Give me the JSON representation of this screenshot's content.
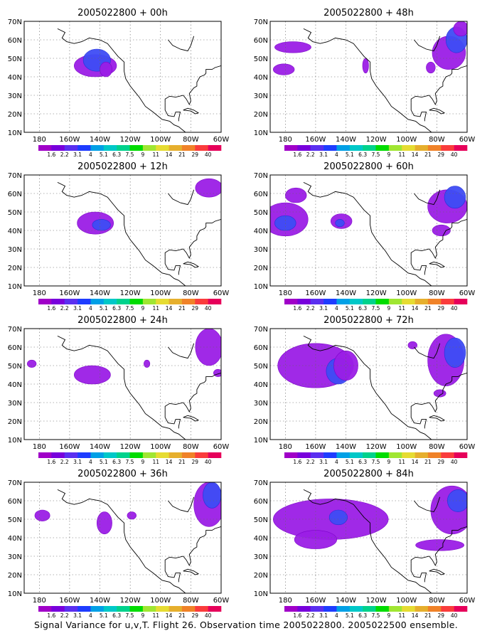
{
  "figure": {
    "caption": "Signal Variance for u,v,T. Flight 26. Observation time 2005022800. 2005022500 ensemble."
  },
  "colorbar": {
    "labels": [
      "1.6",
      "2.2",
      "3.1",
      "4",
      "5.1",
      "6.3",
      "7.5",
      "9",
      "11",
      "14",
      "21",
      "29",
      "40"
    ],
    "colors": [
      "#a000c8",
      "#7800dc",
      "#5a2ff0",
      "#1e3cff",
      "#00a0e6",
      "#00c8c8",
      "#00d28c",
      "#00dc00",
      "#a0e632",
      "#e6dc32",
      "#e6af2d",
      "#f08228",
      "#fa3c3c",
      "#e6005a"
    ]
  },
  "axes": {
    "y_ticks": [
      "10N",
      "20N",
      "30N",
      "40N",
      "50N",
      "60N",
      "70N"
    ],
    "x_ticks": [
      "180",
      "160W",
      "140W",
      "120W",
      "100W",
      "80W",
      "60W"
    ]
  },
  "chart_data": [
    {
      "type": "heatmap",
      "title": "2005022800 + 00h",
      "xlim": [
        -190,
        -60
      ],
      "ylim": [
        10,
        70
      ],
      "grid": true,
      "patches": [
        {
          "level": 1,
          "center": [
            -143,
            46
          ],
          "extent": [
            14,
            6
          ]
        },
        {
          "level": 2,
          "center": [
            -142,
            49
          ],
          "extent": [
            9,
            6
          ]
        },
        {
          "level": 1,
          "center": [
            -136,
            44
          ],
          "extent": [
            4,
            4
          ]
        }
      ]
    },
    {
      "type": "heatmap",
      "title": "2005022800 + 48h",
      "xlim": [
        -190,
        -60
      ],
      "ylim": [
        10,
        70
      ],
      "grid": true,
      "patches": [
        {
          "level": 1,
          "center": [
            -175,
            56
          ],
          "extent": [
            12,
            3
          ]
        },
        {
          "level": 1,
          "center": [
            -181,
            44
          ],
          "extent": [
            7,
            3
          ]
        },
        {
          "level": 1,
          "center": [
            -127,
            46
          ],
          "extent": [
            2,
            4
          ]
        },
        {
          "level": 1,
          "center": [
            -84,
            45
          ],
          "extent": [
            3,
            3
          ]
        },
        {
          "level": 1,
          "center": [
            -72,
            53
          ],
          "extent": [
            11,
            9
          ]
        },
        {
          "level": 2,
          "center": [
            -67,
            60
          ],
          "extent": [
            7,
            7
          ]
        },
        {
          "level": 1,
          "center": [
            -64,
            66
          ],
          "extent": [
            5,
            4
          ]
        }
      ]
    },
    {
      "type": "heatmap",
      "title": "2005022800 + 12h",
      "xlim": [
        -190,
        -60
      ],
      "ylim": [
        10,
        70
      ],
      "grid": true,
      "patches": [
        {
          "level": 1,
          "center": [
            -143,
            44
          ],
          "extent": [
            12,
            6
          ]
        },
        {
          "level": 2,
          "center": [
            -139,
            43
          ],
          "extent": [
            6,
            3
          ]
        },
        {
          "level": 1,
          "center": [
            -68,
            63
          ],
          "extent": [
            9,
            5
          ]
        }
      ]
    },
    {
      "type": "heatmap",
      "title": "2005022800 + 60h",
      "xlim": [
        -190,
        -60
      ],
      "ylim": [
        10,
        70
      ],
      "grid": true,
      "patches": [
        {
          "level": 1,
          "center": [
            -180,
            46
          ],
          "extent": [
            15,
            9
          ]
        },
        {
          "level": 1,
          "center": [
            -173,
            59
          ],
          "extent": [
            7,
            4
          ]
        },
        {
          "level": 2,
          "center": [
            -180,
            44
          ],
          "extent": [
            7,
            4
          ]
        },
        {
          "level": 1,
          "center": [
            -143,
            45
          ],
          "extent": [
            7,
            4
          ]
        },
        {
          "level": 2,
          "center": [
            -144,
            44
          ],
          "extent": [
            3,
            2
          ]
        },
        {
          "level": 1,
          "center": [
            -73,
            53
          ],
          "extent": [
            13,
            9
          ]
        },
        {
          "level": 2,
          "center": [
            -68,
            58
          ],
          "extent": [
            7,
            6
          ]
        },
        {
          "level": 1,
          "center": [
            -77,
            40
          ],
          "extent": [
            6,
            3
          ]
        }
      ]
    },
    {
      "type": "heatmap",
      "title": "2005022800 + 24h",
      "xlim": [
        -190,
        -60
      ],
      "ylim": [
        10,
        70
      ],
      "grid": true,
      "patches": [
        {
          "level": 1,
          "center": [
            -145,
            45
          ],
          "extent": [
            12,
            5
          ]
        },
        {
          "level": 1,
          "center": [
            -185,
            51
          ],
          "extent": [
            3,
            2
          ]
        },
        {
          "level": 1,
          "center": [
            -109,
            51
          ],
          "extent": [
            2,
            2
          ]
        },
        {
          "level": 1,
          "center": [
            -68,
            60
          ],
          "extent": [
            9,
            10
          ]
        },
        {
          "level": 1,
          "center": [
            -62,
            46
          ],
          "extent": [
            3,
            2
          ]
        }
      ]
    },
    {
      "type": "heatmap",
      "title": "2005022800 + 72h",
      "xlim": [
        -190,
        -60
      ],
      "ylim": [
        10,
        70
      ],
      "grid": true,
      "patches": [
        {
          "level": 1,
          "center": [
            -160,
            50
          ],
          "extent": [
            25,
            12
          ]
        },
        {
          "level": 2,
          "center": [
            -145,
            47
          ],
          "extent": [
            8,
            7
          ]
        },
        {
          "level": 1,
          "center": [
            -140,
            50
          ],
          "extent": [
            8,
            8
          ]
        },
        {
          "level": 1,
          "center": [
            -96,
            61
          ],
          "extent": [
            3,
            2
          ]
        },
        {
          "level": 1,
          "center": [
            -74,
            53
          ],
          "extent": [
            12,
            14
          ]
        },
        {
          "level": 2,
          "center": [
            -68,
            57
          ],
          "extent": [
            7,
            8
          ]
        },
        {
          "level": 1,
          "center": [
            -78,
            35
          ],
          "extent": [
            4,
            2
          ]
        }
      ]
    },
    {
      "type": "heatmap",
      "title": "2005022800 + 36h",
      "xlim": [
        -190,
        -60
      ],
      "ylim": [
        10,
        70
      ],
      "grid": true,
      "patches": [
        {
          "level": 1,
          "center": [
            -178,
            52
          ],
          "extent": [
            5,
            3
          ]
        },
        {
          "level": 1,
          "center": [
            -137,
            48
          ],
          "extent": [
            5,
            6
          ]
        },
        {
          "level": 1,
          "center": [
            -119,
            52
          ],
          "extent": [
            3,
            2
          ]
        },
        {
          "level": 1,
          "center": [
            -68,
            58
          ],
          "extent": [
            10,
            12
          ]
        },
        {
          "level": 2,
          "center": [
            -66,
            63
          ],
          "extent": [
            6,
            7
          ]
        }
      ]
    },
    {
      "type": "heatmap",
      "title": "2005022800 + 84h",
      "xlim": [
        -190,
        -60
      ],
      "ylim": [
        10,
        70
      ],
      "grid": true,
      "patches": [
        {
          "level": 1,
          "center": [
            -150,
            50
          ],
          "extent": [
            38,
            11
          ]
        },
        {
          "level": 2,
          "center": [
            -145,
            51
          ],
          "extent": [
            6,
            4
          ]
        },
        {
          "level": 1,
          "center": [
            -160,
            39
          ],
          "extent": [
            14,
            5
          ]
        },
        {
          "level": 1,
          "center": [
            -70,
            55
          ],
          "extent": [
            14,
            13
          ]
        },
        {
          "level": 2,
          "center": [
            -66,
            60
          ],
          "extent": [
            7,
            6
          ]
        },
        {
          "level": 1,
          "center": [
            -78,
            36
          ],
          "extent": [
            16,
            3
          ]
        }
      ]
    }
  ]
}
